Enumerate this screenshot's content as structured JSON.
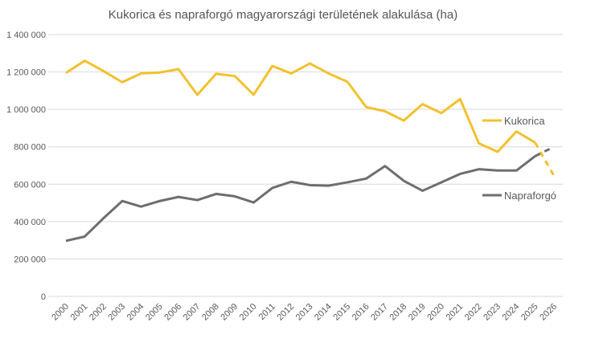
{
  "chart_data": {
    "type": "line",
    "title": "Kukorica és napraforgó magyarországi területének alakulása (ha)",
    "xlabel": "",
    "ylabel": "",
    "ylim": [
      0,
      1400000
    ],
    "yticks": [
      0,
      200000,
      400000,
      600000,
      800000,
      1000000,
      1200000,
      1400000
    ],
    "ytick_labels": [
      "0",
      "200 000",
      "400 000",
      "600 000",
      "800 000",
      "1 000 000",
      "1 200 000",
      "1 400 000"
    ],
    "grid": "horizontal",
    "legend": "inline-right",
    "categories": [
      "2000",
      "2001",
      "2002",
      "2003",
      "2004",
      "2005",
      "2006",
      "2007",
      "2008",
      "2009",
      "2010",
      "2011",
      "2012",
      "2013",
      "2014",
      "2015",
      "2016",
      "2017",
      "2018",
      "2019",
      "2020",
      "2021",
      "2022",
      "2023",
      "2024",
      "2025",
      "2026"
    ],
    "series": [
      {
        "name": "Kukorica",
        "color": "#F2C12E",
        "dashed_from": "2025",
        "values": [
          1195000,
          1260000,
          1205000,
          1145000,
          1192000,
          1197000,
          1215000,
          1078000,
          1190000,
          1178000,
          1078000,
          1232000,
          1192000,
          1245000,
          1192000,
          1147000,
          1012000,
          990000,
          940000,
          1028000,
          980000,
          1055000,
          818000,
          773000,
          882000,
          822000,
          645000
        ]
      },
      {
        "name": "Napraforgó",
        "color": "#6E6E6E",
        "dashed_from": "2025",
        "values": [
          297000,
          320000,
          418000,
          510000,
          480000,
          510000,
          532000,
          515000,
          548000,
          535000,
          502000,
          580000,
          613000,
          595000,
          592000,
          610000,
          630000,
          697000,
          618000,
          565000,
          610000,
          655000,
          680000,
          673000,
          673000,
          750000,
          800000
        ]
      }
    ]
  }
}
